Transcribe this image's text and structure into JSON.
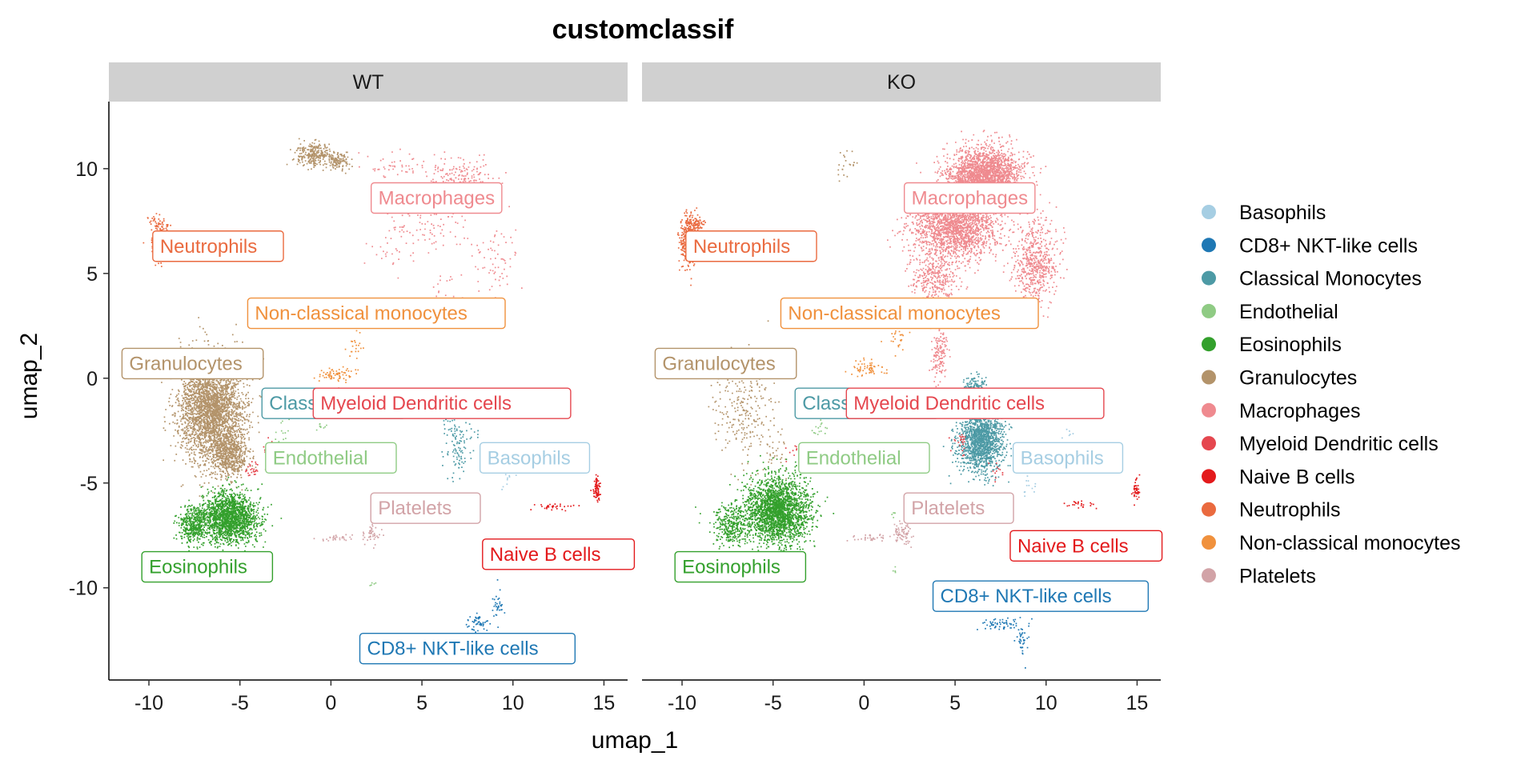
{
  "chart_data": {
    "type": "scatter",
    "title": "customclassif",
    "xlabel": "umap_1",
    "ylabel": "umap_2",
    "xlim": [
      -12.2,
      16.3
    ],
    "ylim": [
      -14.4,
      13.2
    ],
    "x_ticks": [
      -10,
      -5,
      0,
      5,
      10,
      15
    ],
    "y_ticks": [
      -10,
      -5,
      0,
      5,
      10
    ],
    "x_tick_labels": [
      "-10",
      "-5",
      "0",
      "5",
      "10",
      "15"
    ],
    "y_tick_labels": [
      "-10",
      "-5",
      "0",
      "5",
      "10"
    ],
    "grid": false,
    "legend_position": "right",
    "legend": [
      {
        "name": "Basophils",
        "color": "#A6CEE3"
      },
      {
        "name": "CD8+ NKT-like cells",
        "color": "#1F78B4"
      },
      {
        "name": "Classical Monocytes",
        "color": "#4D9AA5"
      },
      {
        "name": "Endothelial",
        "color": "#8FCB84"
      },
      {
        "name": "Eosinophils",
        "color": "#33A02C"
      },
      {
        "name": "Granulocytes",
        "color": "#B3936A"
      },
      {
        "name": "Macrophages",
        "color": "#EF8A8F"
      },
      {
        "name": "Myeloid Dendritic cells",
        "color": "#E5474F"
      },
      {
        "name": "Naive B cells",
        "color": "#E31A1C"
      },
      {
        "name": "Neutrophils",
        "color": "#EA6A3F"
      },
      {
        "name": "Non-classical monocytes",
        "color": "#F0913D"
      },
      {
        "name": "Platelets",
        "color": "#D2A3A7"
      }
    ],
    "panels": [
      {
        "facet": "WT",
        "clusters": [
          {
            "name": "Macrophages",
            "density": 0.35,
            "regions": [
              [
                7.0,
                9.5,
                1.6,
                1.1,
                650
              ],
              [
                5.2,
                7.5,
                1.7,
                1.6,
                300
              ],
              [
                9.0,
                5.5,
                1.1,
                1.8,
                200
              ],
              [
                3.6,
                10.2,
                1.5,
                0.6,
                130
              ],
              [
                6.3,
                3.8,
                1.1,
                1.0,
                90
              ],
              [
                3.2,
                6.2,
                1.2,
                1.3,
                90
              ]
            ]
          },
          {
            "name": "Granulocytes",
            "density": 1.0,
            "regions": [
              [
                -6.6,
                -1.4,
                1.6,
                2.3,
                2900
              ],
              [
                -5.6,
                -3.6,
                0.9,
                1.0,
                600
              ],
              [
                -1.0,
                10.7,
                0.9,
                0.5,
                260
              ],
              [
                0.4,
                10.4,
                0.7,
                0.4,
                120
              ]
            ]
          },
          {
            "name": "Neutrophils",
            "density": 0.5,
            "regions": [
              [
                -9.6,
                6.8,
                0.4,
                1.0,
                180
              ],
              [
                -9.3,
                7.3,
                0.5,
                0.3,
                60
              ]
            ]
          },
          {
            "name": "Eosinophils",
            "density": 1.0,
            "regions": [
              [
                -5.6,
                -6.6,
                1.4,
                1.1,
                1700
              ],
              [
                -7.6,
                -7.0,
                0.7,
                0.8,
                400
              ]
            ]
          },
          {
            "name": "Non-classical monocytes",
            "density": 0.5,
            "regions": [
              [
                0.2,
                0.2,
                0.9,
                0.3,
                140
              ],
              [
                1.3,
                1.6,
                0.5,
                0.6,
                40
              ]
            ]
          },
          {
            "name": "Classical Monocytes",
            "density": 0.5,
            "regions": [
              [
                7.0,
                -3.2,
                0.7,
                1.4,
                230
              ],
              [
                6.4,
                -1.4,
                0.5,
                0.8,
                80
              ]
            ]
          },
          {
            "name": "Myeloid Dendritic cells",
            "density": 0.5,
            "regions": [
              [
                -4.4,
                -4.4,
                0.4,
                0.4,
                50
              ],
              [
                -3.5,
                -3.2,
                0.4,
                0.4,
                20
              ]
            ]
          },
          {
            "name": "Naive B cells",
            "density": 0.6,
            "regions": [
              [
                14.6,
                -5.3,
                0.2,
                0.6,
                130
              ],
              [
                12.2,
                -6.1,
                1.1,
                0.15,
                50
              ]
            ]
          },
          {
            "name": "Platelets",
            "density": 0.5,
            "regions": [
              [
                2.2,
                -7.4,
                0.4,
                0.5,
                90
              ],
              [
                0.3,
                -7.6,
                1.0,
                0.15,
                60
              ]
            ]
          },
          {
            "name": "CD8+ NKT-like cells",
            "density": 0.6,
            "regions": [
              [
                8.1,
                -11.7,
                0.7,
                0.4,
                90
              ],
              [
                9.2,
                -10.8,
                0.3,
                0.6,
                50
              ]
            ]
          },
          {
            "name": "Basophils",
            "density": 0.6,
            "regions": [
              [
                9.7,
                -4.5,
                0.4,
                0.9,
                25
              ]
            ]
          },
          {
            "name": "Endothelial",
            "density": 0.6,
            "regions": [
              [
                -2.8,
                -2.3,
                0.4,
                0.5,
                25
              ],
              [
                -0.6,
                -2.3,
                0.3,
                0.3,
                15
              ],
              [
                2.3,
                -9.8,
                0.2,
                0.2,
                8
              ]
            ]
          }
        ],
        "labels": [
          {
            "text": "Macrophages",
            "x": 5.8,
            "y": 8.6,
            "cluster": "Macrophages"
          },
          {
            "text": "Neutrophils",
            "x": -6.2,
            "y": 6.3,
            "cluster": "Neutrophils"
          },
          {
            "text": "Non-classical monocytes",
            "x": 2.5,
            "y": 3.1,
            "cluster": "Non-classical monocytes"
          },
          {
            "text": "Granulocytes",
            "x": -7.6,
            "y": 0.7,
            "cluster": "Granulocytes"
          },
          {
            "text": "Classical M",
            "x": -0.2,
            "y": -1.2,
            "cluster": "Classical Monocytes",
            "box_x1": 4.1
          },
          {
            "text": "Myeloid Dendritic cells",
            "x": 6.1,
            "y": -1.2,
            "cluster": "Myeloid Dendritic cells"
          },
          {
            "text": "Endothelial",
            "x": 0.0,
            "y": -3.8,
            "cluster": "Endothelial"
          },
          {
            "text": "Basophils",
            "x": 11.2,
            "y": -3.8,
            "cluster": "Basophils"
          },
          {
            "text": "Platelets",
            "x": 5.2,
            "y": -6.2,
            "cluster": "Platelets"
          },
          {
            "text": "Naive B cells",
            "x": 12.5,
            "y": -8.4,
            "cluster": "Naive B cells"
          },
          {
            "text": "Eosinophils",
            "x": -6.8,
            "y": -9.0,
            "cluster": "Eosinophils"
          },
          {
            "text": "CD8+ NKT-like cells",
            "x": 7.5,
            "y": -12.9,
            "cluster": "CD8+ NKT-like cells"
          }
        ]
      },
      {
        "facet": "KO",
        "clusters": [
          {
            "name": "Macrophages",
            "density": 1.0,
            "regions": [
              [
                6.6,
                9.6,
                1.8,
                1.3,
                2500
              ],
              [
                5.0,
                7.3,
                2.2,
                1.4,
                1900
              ],
              [
                9.4,
                5.6,
                1.1,
                1.8,
                600
              ],
              [
                3.9,
                4.8,
                1.2,
                1.2,
                350
              ],
              [
                4.1,
                1.2,
                0.4,
                1.2,
                140
              ]
            ]
          },
          {
            "name": "Granulocytes",
            "density": 0.35,
            "regions": [
              [
                -6.7,
                -1.4,
                1.6,
                2.3,
                700
              ],
              [
                -1.0,
                10.2,
                0.8,
                0.6,
                60
              ],
              [
                -4.9,
                -3.4,
                0.6,
                0.7,
                80
              ]
            ]
          },
          {
            "name": "Neutrophils",
            "density": 1.0,
            "regions": [
              [
                -9.7,
                6.6,
                0.4,
                1.1,
                330
              ],
              [
                -9.3,
                7.4,
                0.5,
                0.3,
                80
              ]
            ]
          },
          {
            "name": "Eosinophils",
            "density": 1.0,
            "regions": [
              [
                -4.8,
                -6.3,
                1.6,
                1.4,
                2300
              ],
              [
                -7.4,
                -7.0,
                0.9,
                0.8,
                300
              ]
            ]
          },
          {
            "name": "Non-classical monocytes",
            "density": 0.5,
            "regions": [
              [
                0.2,
                0.5,
                0.8,
                0.3,
                120
              ],
              [
                1.7,
                1.9,
                0.5,
                0.6,
                50
              ]
            ]
          },
          {
            "name": "Classical Monocytes",
            "density": 1.0,
            "regions": [
              [
                6.4,
                -2.9,
                1.1,
                1.4,
                1500
              ],
              [
                6.1,
                -0.6,
                0.6,
                0.7,
                200
              ]
            ]
          },
          {
            "name": "Myeloid Dendritic cells",
            "density": 0.6,
            "regions": [
              [
                5.3,
                -3.0,
                0.4,
                0.4,
                40
              ],
              [
                7.3,
                -4.4,
                0.4,
                0.4,
                20
              ],
              [
                -3.9,
                -3.5,
                0.4,
                0.4,
                15
              ]
            ]
          },
          {
            "name": "Naive B cells",
            "density": 0.6,
            "regions": [
              [
                14.9,
                -5.3,
                0.2,
                0.5,
                70
              ],
              [
                11.8,
                -6.0,
                1.1,
                0.15,
                40
              ]
            ]
          },
          {
            "name": "Platelets",
            "density": 0.5,
            "regions": [
              [
                2.0,
                -7.4,
                0.5,
                0.5,
                140
              ],
              [
                0.2,
                -7.6,
                1.0,
                0.15,
                60
              ]
            ]
          },
          {
            "name": "CD8+ NKT-like cells",
            "density": 0.6,
            "regions": [
              [
                7.6,
                -11.7,
                0.9,
                0.3,
                100
              ],
              [
                8.7,
                -12.5,
                0.3,
                0.7,
                60
              ]
            ]
          },
          {
            "name": "Basophils",
            "density": 0.6,
            "regions": [
              [
                9.1,
                -5.0,
                0.6,
                0.6,
                20
              ],
              [
                11.2,
                -2.6,
                0.3,
                0.4,
                10
              ]
            ]
          },
          {
            "name": "Endothelial",
            "density": 0.6,
            "regions": [
              [
                -2.5,
                -2.4,
                0.4,
                0.4,
                25
              ],
              [
                1.6,
                -6.5,
                0.2,
                0.3,
                8
              ],
              [
                1.7,
                -9.2,
                0.2,
                0.2,
                8
              ]
            ]
          }
        ],
        "labels": [
          {
            "text": "Macrophages",
            "x": 5.8,
            "y": 8.6,
            "cluster": "Macrophages"
          },
          {
            "text": "Neutrophils",
            "x": -6.2,
            "y": 6.3,
            "cluster": "Neutrophils"
          },
          {
            "text": "Non-classical monocytes",
            "x": 2.5,
            "y": 3.1,
            "cluster": "Non-classical monocytes"
          },
          {
            "text": "Granulocytes",
            "x": -7.6,
            "y": 0.7,
            "cluster": "Granulocytes"
          },
          {
            "text": "Classical M",
            "x": -0.2,
            "y": -1.2,
            "cluster": "Classical Monocytes",
            "box_x1": 4.1
          },
          {
            "text": "Myeloid Dendritic cells",
            "x": 6.1,
            "y": -1.2,
            "cluster": "Myeloid Dendritic cells"
          },
          {
            "text": "Endothelial",
            "x": 0.0,
            "y": -3.8,
            "cluster": "Endothelial"
          },
          {
            "text": "Basophils",
            "x": 11.2,
            "y": -3.8,
            "cluster": "Basophils"
          },
          {
            "text": "Platelets",
            "x": 5.2,
            "y": -6.2,
            "cluster": "Platelets"
          },
          {
            "text": "Naive B cells",
            "x": 12.2,
            "y": -8.0,
            "cluster": "Naive B cells"
          },
          {
            "text": "Eosinophils",
            "x": -6.8,
            "y": -9.0,
            "cluster": "Eosinophils"
          },
          {
            "text": "CD8+ NKT-like cells",
            "x": 9.7,
            "y": -10.4,
            "cluster": "CD8+ NKT-like cells"
          }
        ]
      }
    ]
  }
}
